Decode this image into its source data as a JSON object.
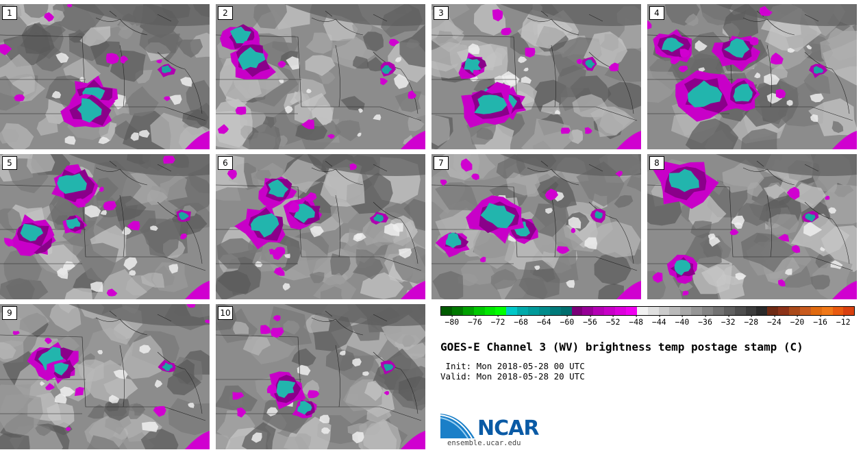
{
  "stamps": [
    {
      "label": "1"
    },
    {
      "label": "2"
    },
    {
      "label": "3"
    },
    {
      "label": "4"
    },
    {
      "label": "5"
    },
    {
      "label": "6"
    },
    {
      "label": "7"
    },
    {
      "label": "8"
    },
    {
      "label": "9"
    },
    {
      "label": "10"
    }
  ],
  "colorbar": {
    "colors": [
      "#005a00",
      "#007800",
      "#00a000",
      "#00c800",
      "#00e600",
      "#00ff00",
      "#00c8c8",
      "#00aaaa",
      "#009a9a",
      "#008b8b",
      "#007a7a",
      "#006e6e",
      "#7a0078",
      "#960096",
      "#b400b4",
      "#c800c8",
      "#dc00dc",
      "#f000f0",
      "#f2f2f2",
      "#e0e0e0",
      "#cccccc",
      "#bababa",
      "#a8a8a8",
      "#969696",
      "#848484",
      "#727272",
      "#606060",
      "#4e4e4e",
      "#3c3c3c",
      "#2a2a2a",
      "#6e2a14",
      "#8c3218",
      "#aa4a1a",
      "#c85a1e",
      "#e06a10",
      "#f07818",
      "#e85a10",
      "#d84010"
    ],
    "tick_labels": [
      "−80",
      "−76",
      "−72",
      "−68",
      "−64",
      "−60",
      "−56",
      "−52",
      "−48",
      "−44",
      "−40",
      "−36",
      "−32",
      "−28",
      "−24",
      "−20",
      "−16",
      "−12"
    ],
    "tick_values": [
      -80,
      -76,
      -72,
      -68,
      -64,
      -60,
      -56,
      -52,
      -48,
      -44,
      -40,
      -36,
      -32,
      -28,
      -24,
      -20,
      -16,
      -12
    ],
    "range": [
      -82,
      -10
    ]
  },
  "title": "GOES-E Channel 3 (WV) brightness temp postage stamp (C)",
  "init": " Init: Mon 2018-05-28 00 UTC",
  "valid": "Valid: Mon 2018-05-28 20 UTC",
  "logo": {
    "text": "NCAR",
    "icon": "ncar-logo-icon"
  },
  "url": "ensemble.ucar.edu"
}
